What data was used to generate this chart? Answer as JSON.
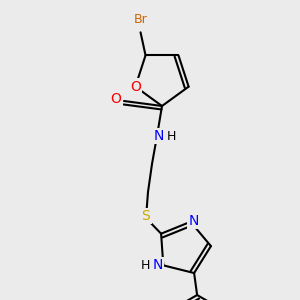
{
  "bg_color": "#ebebeb",
  "atom_colors": {
    "C": "#000000",
    "N": "#0000ff",
    "O": "#ff0000",
    "S": "#ccaa00",
    "Br": "#cc6600",
    "H": "#000000"
  },
  "bond_color": "#000000",
  "bond_width": 1.5,
  "font_size": 9,
  "fig_width": 3.0,
  "fig_height": 3.0,
  "dpi": 100
}
